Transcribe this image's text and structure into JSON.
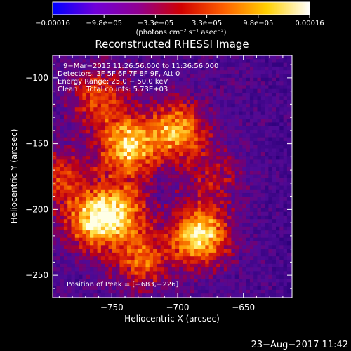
{
  "chart_data": {
    "type": "heatmap",
    "title": "Reconstructed RHESSI Image",
    "xlabel": "Heliocentric X (arcsec)",
    "ylabel": "Heliocentric Y (arcsec)",
    "xlim": [
      -795,
      -613
    ],
    "ylim": [
      -267,
      -83
    ],
    "x_ticks": [
      {
        "value": -750,
        "label": "−750"
      },
      {
        "value": -700,
        "label": "−700"
      },
      {
        "value": -650,
        "label": "−650"
      }
    ],
    "y_ticks": [
      {
        "value": -100,
        "label": "−100"
      },
      {
        "value": -150,
        "label": "−150"
      },
      {
        "value": -200,
        "label": "−200"
      },
      {
        "value": -250,
        "label": "−250"
      }
    ],
    "colorbar": {
      "range": [
        -0.00016,
        0.00016
      ],
      "tick_labels": [
        "−0.00016",
        "−9.8e−05",
        "−3.3e−05",
        "3.3e−05",
        "9.8e−05",
        "0.00016"
      ],
      "unit_label": "(photons cm⁻² s⁻¹ asec⁻²)",
      "colors": [
        "#0000ff",
        "#7000d8",
        "#900090",
        "#d00000",
        "#ff6000",
        "#ffd000",
        "#ffffff"
      ]
    },
    "annotations": [
      "9−Mar−2015 11:26:56.000 to 11:36:56.000",
      "Detectors: 3F 5F 6F 7F 8F 9F, Att 0",
      "Energy Range: 25.0 − 50.0 keV",
      "Clean    Total counts: 5.73E+03"
    ],
    "peak_label": "Position of Peak = [−683,−226]",
    "bright_regions": [
      {
        "x": -683,
        "y": -220,
        "intensity": 1.0
      },
      {
        "x": -738,
        "y": -152,
        "intensity": 0.9
      },
      {
        "x": -700,
        "y": -140,
        "intensity": 0.8
      },
      {
        "x": -765,
        "y": -210,
        "intensity": 0.75
      },
      {
        "x": -745,
        "y": -200,
        "intensity": 0.7
      },
      {
        "x": -728,
        "y": -238,
        "intensity": 0.6
      },
      {
        "x": -760,
        "y": -115,
        "intensity": 0.55
      },
      {
        "x": -790,
        "y": -175,
        "intensity": 0.5
      },
      {
        "x": -672,
        "y": -175,
        "intensity": 0.35
      }
    ]
  },
  "footer_timestamp": "23−Aug−2017 11:42"
}
